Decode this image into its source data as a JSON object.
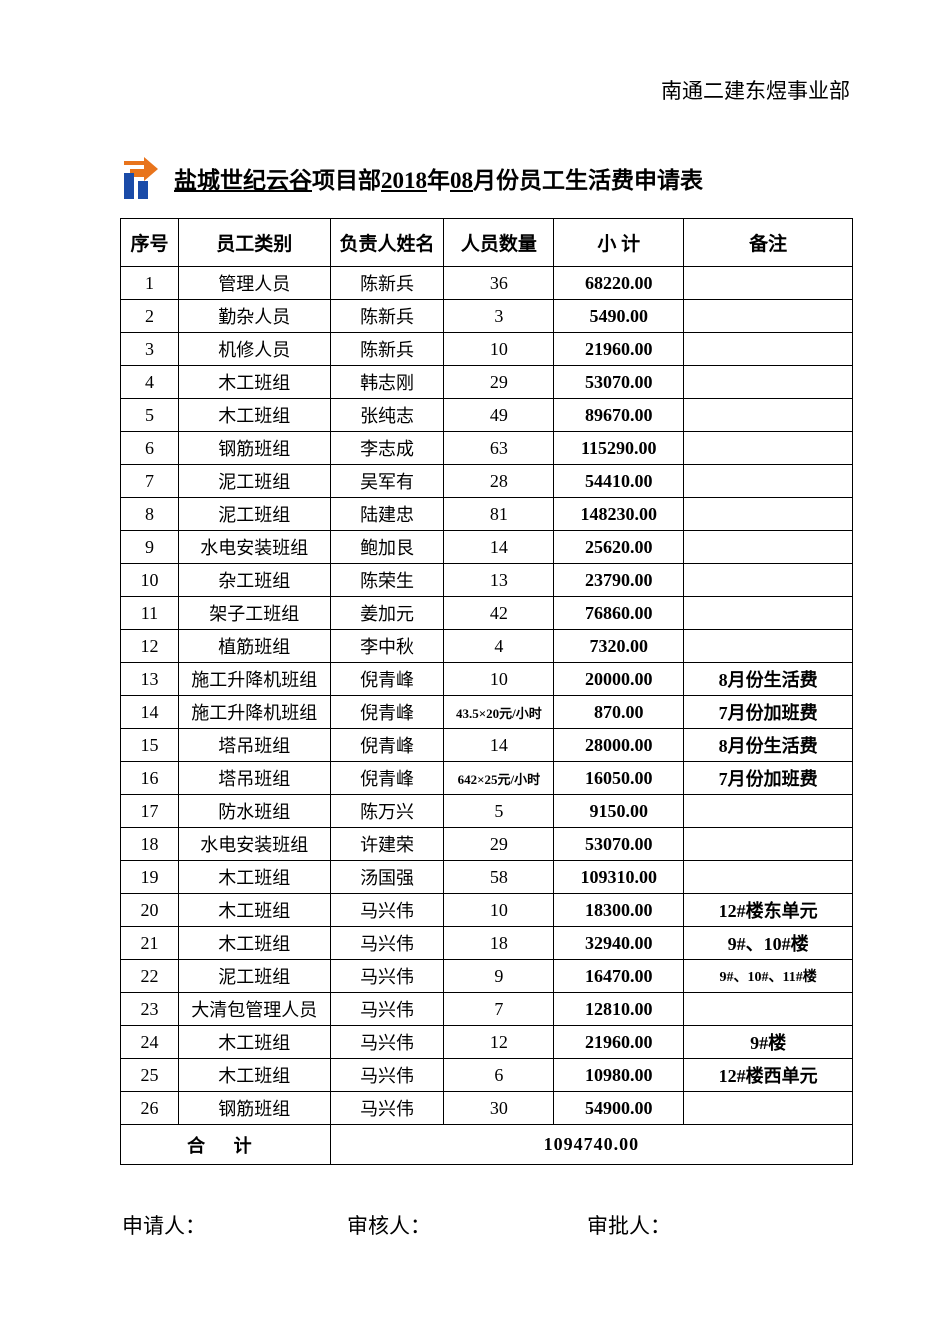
{
  "header": "南通二建东煜事业部",
  "title": {
    "prefix_underline": "盐城世纪云谷",
    "mid1": "项目部",
    "year_underline": "2018",
    "mid2": "年",
    "month_underline": "08",
    "suffix": "月份员工生活费申请表"
  },
  "columns": {
    "seq": "序号",
    "category": "员工类别",
    "person": "负责人姓名",
    "qty": "人员数量",
    "subtotal": "小  计",
    "remark": "备注"
  },
  "col_widths": {
    "seq": 58,
    "category": 152,
    "person": 114,
    "qty": 110,
    "subtotal": 130,
    "remark": 169
  },
  "rows": [
    {
      "seq": "1",
      "category": "管理人员",
      "person": "陈新兵",
      "qty": "36",
      "subtotal": "68220.00",
      "remark": ""
    },
    {
      "seq": "2",
      "category": "勤杂人员",
      "person": "陈新兵",
      "qty": "3",
      "subtotal": "5490.00",
      "remark": ""
    },
    {
      "seq": "3",
      "category": "机修人员",
      "person": "陈新兵",
      "qty": "10",
      "subtotal": "21960.00",
      "remark": ""
    },
    {
      "seq": "4",
      "category": "木工班组",
      "person": "韩志刚",
      "qty": "29",
      "subtotal": "53070.00",
      "remark": ""
    },
    {
      "seq": "5",
      "category": "木工班组",
      "person": "张纯志",
      "qty": "49",
      "subtotal": "89670.00",
      "remark": ""
    },
    {
      "seq": "6",
      "category": "钢筋班组",
      "person": "李志成",
      "qty": "63",
      "subtotal": "115290.00",
      "remark": ""
    },
    {
      "seq": "7",
      "category": "泥工班组",
      "person": "吴军有",
      "qty": "28",
      "subtotal": "54410.00",
      "remark": ""
    },
    {
      "seq": "8",
      "category": "泥工班组",
      "person": "陆建忠",
      "qty": "81",
      "subtotal": "148230.00",
      "remark": ""
    },
    {
      "seq": "9",
      "category": "水电安装班组",
      "person": "鲍加艮",
      "qty": "14",
      "subtotal": "25620.00",
      "remark": ""
    },
    {
      "seq": "10",
      "category": "杂工班组",
      "person": "陈荣生",
      "qty": "13",
      "subtotal": "23790.00",
      "remark": ""
    },
    {
      "seq": "11",
      "category": "架子工班组",
      "person": "姜加元",
      "qty": "42",
      "subtotal": "76860.00",
      "remark": ""
    },
    {
      "seq": "12",
      "category": "植筋班组",
      "person": "李中秋",
      "qty": "4",
      "subtotal": "7320.00",
      "remark": ""
    },
    {
      "seq": "13",
      "category": "施工升降机班组",
      "person": "倪青峰",
      "qty": "10",
      "subtotal": "20000.00",
      "remark": "8月份生活费",
      "remark_bold": true
    },
    {
      "seq": "14",
      "category": "施工升降机班组",
      "person": "倪青峰",
      "qty": "43.5×20元/小时",
      "qty_small": true,
      "subtotal": "870.00",
      "remark": "7月份加班费",
      "remark_bold": true
    },
    {
      "seq": "15",
      "category": "塔吊班组",
      "person": "倪青峰",
      "qty": "14",
      "subtotal": "28000.00",
      "remark": "8月份生活费",
      "remark_bold": true
    },
    {
      "seq": "16",
      "category": "塔吊班组",
      "person": "倪青峰",
      "qty": "642×25元/小时",
      "qty_small": true,
      "subtotal": "16050.00",
      "remark": "7月份加班费",
      "remark_bold": true
    },
    {
      "seq": "17",
      "category": "防水班组",
      "person": "陈万兴",
      "qty": "5",
      "subtotal": "9150.00",
      "remark": ""
    },
    {
      "seq": "18",
      "category": "水电安装班组",
      "person": "许建荣",
      "qty": "29",
      "subtotal": "53070.00",
      "remark": ""
    },
    {
      "seq": "19",
      "category": "木工班组",
      "person": "汤国强",
      "qty": "58",
      "subtotal": "109310.00",
      "remark": ""
    },
    {
      "seq": "20",
      "category": "木工班组",
      "person": "马兴伟",
      "qty": "10",
      "subtotal": "18300.00",
      "remark": "12#楼东单元",
      "remark_bold": true
    },
    {
      "seq": "21",
      "category": "木工班组",
      "person": "马兴伟",
      "qty": "18",
      "subtotal": "32940.00",
      "remark": "9#、10#楼",
      "remark_bold": true
    },
    {
      "seq": "22",
      "category": "泥工班组",
      "person": "马兴伟",
      "qty": "9",
      "subtotal": "16470.00",
      "remark": "9#、10#、11#楼",
      "remark_bold": true,
      "remark_small": true
    },
    {
      "seq": "23",
      "category": "大清包管理人员",
      "person": "马兴伟",
      "qty": "7",
      "subtotal": "12810.00",
      "remark": ""
    },
    {
      "seq": "24",
      "category": "木工班组",
      "person": "马兴伟",
      "qty": "12",
      "subtotal": "21960.00",
      "remark": "9#楼",
      "remark_bold": true
    },
    {
      "seq": "25",
      "category": "木工班组",
      "person": "马兴伟",
      "qty": "6",
      "subtotal": "10980.00",
      "remark": "12#楼西单元",
      "remark_bold": true
    },
    {
      "seq": "26",
      "category": "钢筋班组",
      "person": "马兴伟",
      "qty": "30",
      "subtotal": "54900.00",
      "remark": ""
    }
  ],
  "total": {
    "label": "合  计",
    "value": "1094740.00"
  },
  "footer": {
    "applicant": "申请人：",
    "reviewer": "审核人：",
    "approver": "审批人："
  },
  "colors": {
    "text": "#000000",
    "bg": "#ffffff",
    "border": "#000000",
    "logo_orange": "#e8741c",
    "logo_blue": "#1a4ba8"
  },
  "fonts": {
    "body": "SimSun",
    "mono": "Courier New",
    "title_size": 23,
    "header_size": 21,
    "th_size": 19,
    "td_size": 18
  }
}
